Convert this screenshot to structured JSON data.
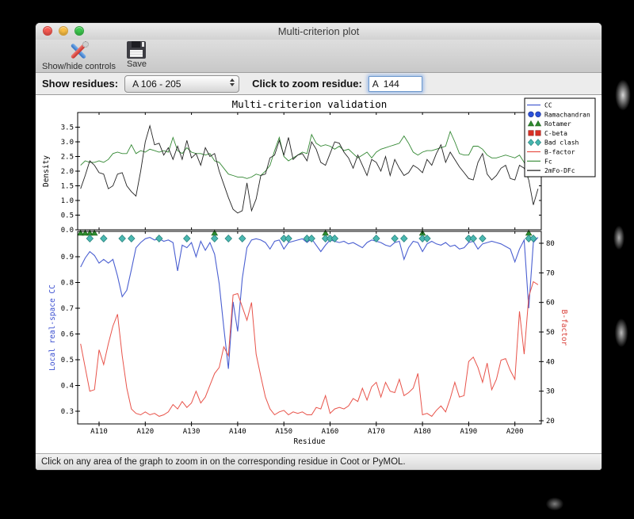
{
  "window": {
    "title": "Multi-criterion plot"
  },
  "toolbar": {
    "items": [
      {
        "label": "Show/hide controls",
        "icon": "tools-icon"
      },
      {
        "label": "Save",
        "icon": "floppy-disk-icon"
      }
    ]
  },
  "controls": {
    "show_residues_label": "Show residues:",
    "show_residues_value": "A 106 - 205",
    "zoom_residue_label": "Click to zoom residue:",
    "zoom_residue_value": "A  144"
  },
  "status_bar": {
    "text": "Click on any area of the graph to zoom in on the corresponding residue in Coot or PyMOL."
  },
  "chart_data": {
    "title": "Multi-criterion validation",
    "residue_start": 106,
    "residue_end": 205,
    "x": {
      "label": "Residue",
      "ticks": [
        "A110",
        "A120",
        "A130",
        "A140",
        "A150",
        "A160",
        "A170",
        "A180",
        "A190",
        "A200"
      ],
      "tick_values": [
        110,
        120,
        130,
        140,
        150,
        160,
        170,
        180,
        190,
        200
      ]
    },
    "legend": [
      {
        "label": "CC",
        "type": "line",
        "color": "#4a5fd1"
      },
      {
        "label": "Ramachandran",
        "type": "circle",
        "color": "#2a50d8"
      },
      {
        "label": "Rotamer",
        "type": "triangle",
        "color": "#2d8a2d"
      },
      {
        "label": "C-beta",
        "type": "square",
        "color": "#d93025"
      },
      {
        "label": "Bad clash",
        "type": "diamond",
        "color": "#45b5ae"
      },
      {
        "label": "B-factor",
        "type": "line",
        "color": "#e8534a"
      },
      {
        "label": "Fc",
        "type": "line",
        "color": "#338833"
      },
      {
        "label": "2mFo-DFc",
        "type": "line",
        "color": "#222222"
      }
    ],
    "top_plot": {
      "type": "line",
      "ylabel": "Density",
      "ylim": [
        0.0,
        4.0
      ],
      "ytick_labels": [
        "0.0",
        "0.5",
        "1.0",
        "1.5",
        "2.0",
        "2.5",
        "3.0",
        "3.5"
      ],
      "yticks": [
        0.0,
        0.5,
        1.0,
        1.5,
        2.0,
        2.5,
        3.0,
        3.5
      ],
      "series": [
        {
          "name": "Fc",
          "color": "#338833",
          "values": [
            2.2,
            2.35,
            2.3,
            2.3,
            2.35,
            2.3,
            2.4,
            2.6,
            2.65,
            2.6,
            2.6,
            2.9,
            2.6,
            2.7,
            2.65,
            2.75,
            2.7,
            2.65,
            2.7,
            2.65,
            3.15,
            2.7,
            2.6,
            2.8,
            2.65,
            2.6,
            2.6,
            2.55,
            2.6,
            2.35,
            2.3,
            2.1,
            1.9,
            1.85,
            1.8,
            1.8,
            1.75,
            1.8,
            1.9,
            1.85,
            2.0,
            2.2,
            2.7,
            3.15,
            2.5,
            2.35,
            2.45,
            2.55,
            2.65,
            2.6,
            3.25,
            2.95,
            2.85,
            2.9,
            2.85,
            2.75,
            2.85,
            2.7,
            2.75,
            2.6,
            2.45,
            2.55,
            2.65,
            2.45,
            2.65,
            2.75,
            2.8,
            2.85,
            2.9,
            2.95,
            3.2,
            2.95,
            2.65,
            2.55,
            2.65,
            2.7,
            2.7,
            2.75,
            2.8,
            2.85,
            3.35,
            3.0,
            2.6,
            2.55,
            2.55,
            2.85,
            2.85,
            2.75,
            2.55,
            2.45,
            2.45,
            2.5,
            2.55,
            2.5,
            2.45,
            2.55,
            2.3,
            1.8,
            2.1,
            2.35
          ]
        },
        {
          "name": "2mFo-DFc",
          "color": "#222222",
          "values": [
            1.4,
            1.85,
            2.35,
            2.2,
            1.95,
            1.9,
            1.4,
            1.5,
            1.9,
            1.95,
            1.5,
            1.3,
            1.15,
            2.0,
            3.0,
            3.55,
            2.9,
            2.95,
            2.55,
            2.8,
            2.4,
            2.85,
            2.4,
            3.05,
            2.45,
            2.6,
            2.2,
            2.8,
            2.5,
            2.6,
            2.0,
            1.55,
            1.1,
            0.7,
            0.57,
            0.65,
            1.6,
            0.65,
            1.05,
            1.85,
            1.9,
            2.45,
            2.55,
            3.05,
            2.55,
            3.15,
            2.4,
            2.55,
            2.6,
            2.35,
            3.0,
            2.75,
            2.3,
            2.2,
            2.6,
            3.0,
            2.95,
            2.65,
            2.45,
            2.1,
            2.55,
            2.2,
            1.85,
            2.4,
            2.3,
            2.0,
            2.5,
            1.85,
            2.4,
            2.1,
            1.85,
            1.95,
            2.2,
            2.1,
            1.95,
            2.4,
            2.2,
            2.6,
            2.9,
            2.3,
            2.65,
            2.4,
            2.15,
            1.95,
            1.75,
            1.7,
            2.3,
            2.6,
            1.9,
            1.7,
            1.85,
            2.1,
            2.2,
            1.75,
            1.7,
            2.2,
            2.1,
            1.7,
            0.85,
            1.4
          ]
        }
      ]
    },
    "bottom_plot": {
      "type": "line",
      "ylabel_left": "Local real-space CC",
      "ylim_left": [
        0.25,
        1.0
      ],
      "yticks_left": [
        0.3,
        0.4,
        0.5,
        0.6,
        0.7,
        0.8,
        0.9
      ],
      "ylabel_right": "B-factor",
      "ylim_right": [
        19,
        84
      ],
      "yticks_right": [
        20,
        30,
        40,
        50,
        60,
        70,
        80
      ],
      "series": [
        {
          "name": "CC",
          "axis": "left",
          "color": "#4a5fd1",
          "values": [
            0.86,
            0.895,
            0.92,
            0.905,
            0.875,
            0.89,
            0.875,
            0.89,
            0.825,
            0.745,
            0.77,
            0.85,
            0.935,
            0.955,
            0.97,
            0.975,
            0.965,
            0.97,
            0.96,
            0.965,
            0.955,
            0.845,
            0.945,
            0.935,
            0.955,
            0.9,
            0.96,
            0.925,
            0.955,
            0.91,
            0.795,
            0.625,
            0.465,
            0.725,
            0.61,
            0.815,
            0.935,
            0.965,
            0.97,
            0.965,
            0.955,
            0.93,
            0.96,
            0.965,
            0.93,
            0.955,
            0.96,
            0.965,
            0.97,
            0.955,
            0.97,
            0.945,
            0.92,
            0.945,
            0.965,
            0.96,
            0.955,
            0.96,
            0.95,
            0.955,
            0.945,
            0.935,
            0.955,
            0.965,
            0.96,
            0.955,
            0.945,
            0.94,
            0.955,
            0.96,
            0.89,
            0.935,
            0.96,
            0.955,
            0.92,
            0.95,
            0.96,
            0.95,
            0.945,
            0.955,
            0.94,
            0.945,
            0.93,
            0.935,
            0.955,
            0.96,
            0.93,
            0.95,
            0.955,
            0.96,
            0.955,
            0.95,
            0.94,
            0.93,
            0.88,
            0.93,
            0.965,
            0.7,
            0.955,
            0.975
          ]
        },
        {
          "name": "B-factor",
          "axis": "right",
          "color": "#e8534a",
          "values": [
            46,
            38,
            30,
            30.5,
            44,
            39,
            46,
            52,
            56,
            42,
            31,
            24,
            22.5,
            22,
            23,
            22,
            22.5,
            21.5,
            22,
            23,
            25.5,
            24,
            26.5,
            24.5,
            26,
            30,
            26,
            28,
            32,
            36,
            38,
            45,
            42,
            62.5,
            63,
            58.5,
            54,
            60,
            42.5,
            35,
            28,
            24,
            22,
            23,
            23.5,
            22,
            23,
            22.5,
            23,
            22,
            22,
            24.5,
            24,
            28.5,
            22.5,
            24,
            24.5,
            24,
            25,
            27.5,
            26.5,
            31,
            27,
            31.5,
            33,
            28,
            33,
            30,
            29.5,
            34,
            28.5,
            29.5,
            31,
            36,
            22,
            22.5,
            21.5,
            23.5,
            25,
            23,
            27.5,
            33,
            28,
            28.5,
            40,
            41.5,
            38,
            33,
            39.5,
            30.5,
            34,
            40.5,
            41,
            37,
            34,
            57,
            42.5,
            62,
            67,
            66
          ]
        }
      ],
      "markers": {
        "rotamer_residues": [
          106,
          107,
          108,
          109,
          135,
          159,
          180,
          203
        ],
        "bad_clash_residues": [
          108,
          111,
          115,
          117,
          123,
          129,
          135,
          138,
          141,
          150,
          151,
          155,
          156,
          159,
          160,
          161,
          170,
          174,
          176,
          180,
          181,
          190,
          191,
          193,
          203,
          204
        ]
      }
    }
  }
}
